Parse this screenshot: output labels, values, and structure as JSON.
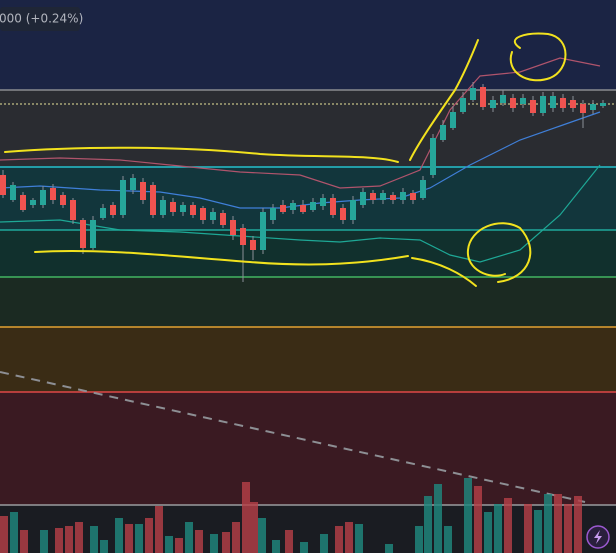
{
  "header": {
    "price_change": "000 (+0.24%)"
  }
}
